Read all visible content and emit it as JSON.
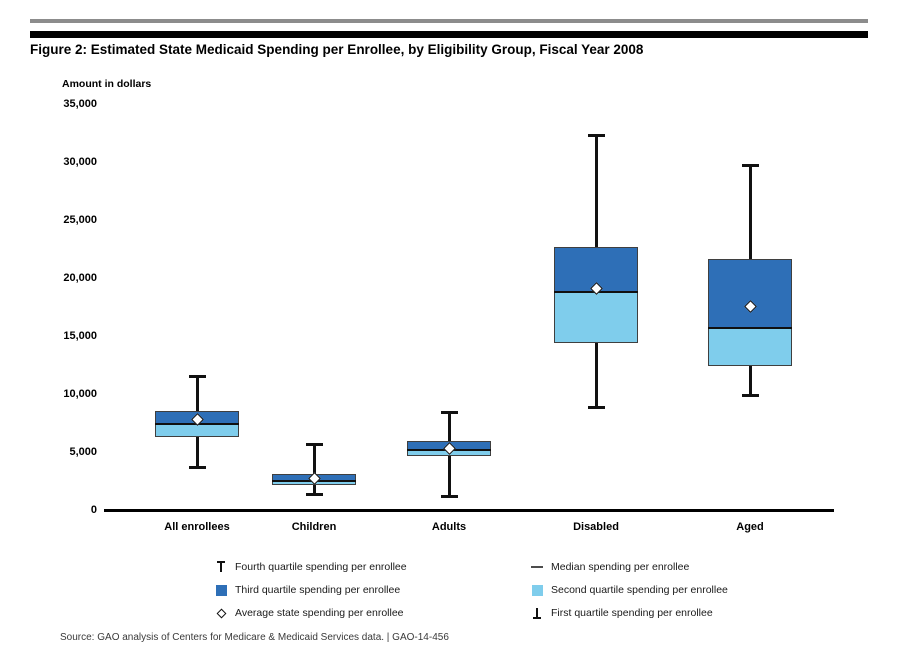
{
  "header": {
    "figure_title": "Figure 2: Estimated State Medicaid Spending per Enrollee, by Eligibility Group, Fiscal Year 2008"
  },
  "chart_data": {
    "type": "box",
    "title": "Figure 2: Estimated State Medicaid Spending per Enrollee, by Eligibility Group, Fiscal Year 2008",
    "xlabel": "",
    "ylabel": "Amount in dollars",
    "ylim": [
      0,
      35000
    ],
    "grid": false,
    "legend_position": "bottom",
    "yticks": [
      {
        "value": 35000,
        "label": "35,000"
      },
      {
        "value": 30000,
        "label": "30,000"
      },
      {
        "value": 25000,
        "label": "25,000"
      },
      {
        "value": 20000,
        "label": "20,000"
      },
      {
        "value": 15000,
        "label": "15,000"
      },
      {
        "value": 10000,
        "label": "10,000"
      },
      {
        "value": 5000,
        "label": "5,000"
      },
      {
        "value": 0,
        "label": "0"
      }
    ],
    "categories": [
      "All enrollees",
      "Children",
      "Adults",
      "Disabled",
      "Aged"
    ],
    "groups": [
      {
        "category": "All enrollees",
        "min": 3700,
        "p25": 6400,
        "median": 7500,
        "p75": 8600,
        "max": 11600,
        "average": 7900
      },
      {
        "category": "Children",
        "min": 1400,
        "p25": 2200,
        "median": 2600,
        "p75": 3200,
        "max": 5800,
        "average": 2800
      },
      {
        "category": "Adults",
        "min": 1200,
        "p25": 4700,
        "median": 5300,
        "p75": 6000,
        "max": 8500,
        "average": 5400
      },
      {
        "category": "Disabled",
        "min": 8900,
        "p25": 14500,
        "median": 18900,
        "p75": 22800,
        "max": 32400,
        "average": 19200
      },
      {
        "category": "Aged",
        "min": 9900,
        "p25": 12500,
        "median": 15800,
        "p75": 21700,
        "max": 29800,
        "average": 17600
      }
    ],
    "colors": {
      "third_quartile": "#2e6fb7",
      "second_quartile": "#7fcdec",
      "line": "#111111"
    }
  },
  "legend": {
    "columns": [
      {
        "items": [
          {
            "icon": "fourth-quartile-icon",
            "label": "Fourth quartile spending per enrollee"
          },
          {
            "icon": "third-quartile-icon",
            "label": "Third quartile spending per enrollee"
          },
          {
            "icon": "average-diamond-icon",
            "label": "Average state spending per enrollee"
          }
        ]
      },
      {
        "items": [
          {
            "icon": "median-line-icon",
            "label": "Median spending per enrollee"
          },
          {
            "icon": "second-quartile-icon",
            "label": "Second quartile spending per enrollee"
          },
          {
            "icon": "first-quartile-icon",
            "label": "First quartile spending per enrollee"
          }
        ]
      }
    ]
  },
  "footer": {
    "source": "Source: GAO analysis of Centers for Medicare & Medicaid Services data.  |  GAO-14-456"
  }
}
